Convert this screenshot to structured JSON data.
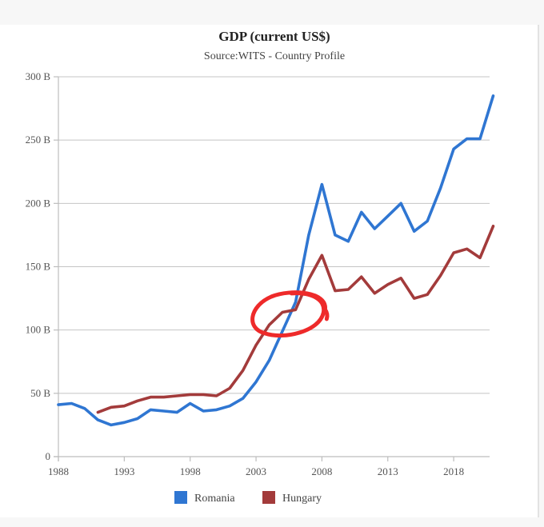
{
  "chart_data": {
    "type": "line",
    "title": "GDP (current US$)",
    "subtitle": "Source:WITS - Country Profile",
    "xlabel": "",
    "ylabel": "",
    "xlim": [
      1988,
      2021
    ],
    "ylim": [
      0,
      300
    ],
    "x_ticks": [
      1988,
      1993,
      1998,
      2003,
      2008,
      2013,
      2018
    ],
    "x_tick_labels": [
      "1988",
      "1993",
      "1998",
      "2003",
      "2008",
      "2013",
      "2018"
    ],
    "y_ticks": [
      0,
      50,
      100,
      150,
      200,
      250,
      300
    ],
    "y_tick_labels": [
      "0",
      "50 B",
      "100 B",
      "150 B",
      "200 B",
      "250 B",
      "300 B"
    ],
    "grid": true,
    "legend_position": "bottom",
    "series": [
      {
        "name": "Romania",
        "color": "#2f76d2",
        "x": [
          1988,
          1989,
          1990,
          1991,
          1992,
          1993,
          1994,
          1995,
          1996,
          1997,
          1998,
          1999,
          2000,
          2001,
          2002,
          2003,
          2004,
          2005,
          2006,
          2007,
          2008,
          2009,
          2010,
          2011,
          2012,
          2013,
          2014,
          2015,
          2016,
          2017,
          2018,
          2019,
          2020,
          2021
        ],
        "values": [
          41,
          42,
          38,
          29,
          25,
          27,
          30,
          37,
          36,
          35,
          42,
          36,
          37,
          40,
          46,
          59,
          76,
          99,
          122,
          175,
          215,
          175,
          170,
          193,
          180,
          190,
          200,
          178,
          186,
          212,
          243,
          251,
          251,
          285
        ]
      },
      {
        "name": "Hungary",
        "color": "#a33b3b",
        "x": [
          1991,
          1992,
          1993,
          1994,
          1995,
          1996,
          1997,
          1998,
          1999,
          2000,
          2001,
          2002,
          2003,
          2004,
          2005,
          2006,
          2007,
          2008,
          2009,
          2010,
          2011,
          2012,
          2013,
          2014,
          2015,
          2016,
          2017,
          2018,
          2019,
          2020,
          2021
        ],
        "values": [
          35,
          39,
          40,
          44,
          47,
          47,
          48,
          49,
          49,
          48,
          54,
          68,
          88,
          104,
          114,
          116,
          140,
          159,
          131,
          132,
          142,
          129,
          136,
          141,
          125,
          128,
          143,
          161,
          164,
          157,
          182
        ]
      }
    ],
    "annotation": {
      "type": "hand-drawn-circle",
      "color": "#ee2a2a",
      "around_x": [
        2003.5,
        2008
      ],
      "around_y": [
        95,
        130
      ]
    }
  }
}
